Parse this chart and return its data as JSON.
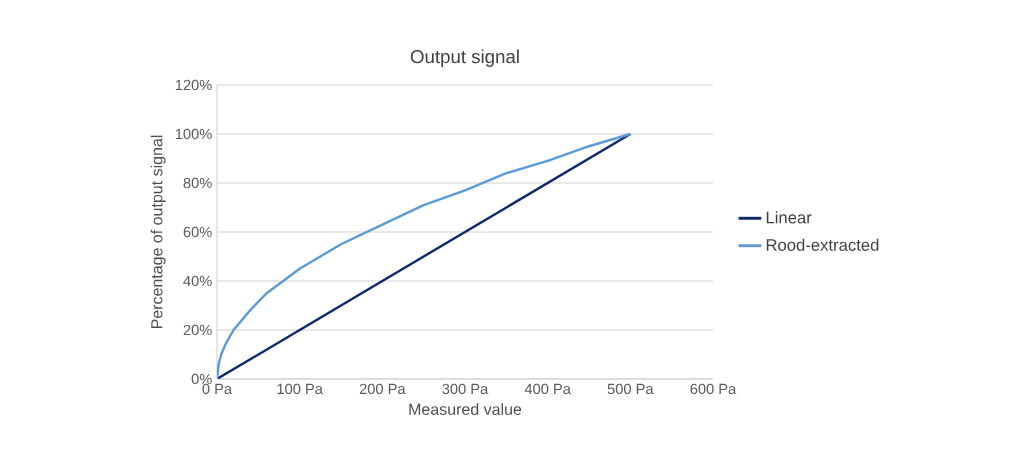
{
  "chart_data": {
    "type": "line",
    "title": "Output signal",
    "xlabel": "Measured value",
    "ylabel": "Percentage of output signal",
    "xlim": [
      0,
      600
    ],
    "ylim": [
      0,
      120
    ],
    "xticks": [
      {
        "value": 0,
        "label": "0 Pa"
      },
      {
        "value": 100,
        "label": "100 Pa"
      },
      {
        "value": 200,
        "label": "200 Pa"
      },
      {
        "value": 300,
        "label": "300 Pa"
      },
      {
        "value": 400,
        "label": "400 Pa"
      },
      {
        "value": 500,
        "label": "500 Pa"
      },
      {
        "value": 600,
        "label": "600 Pa"
      }
    ],
    "yticks": [
      {
        "value": 0,
        "label": "0%"
      },
      {
        "value": 20,
        "label": "20%"
      },
      {
        "value": 40,
        "label": "40%"
      },
      {
        "value": 60,
        "label": "60%"
      },
      {
        "value": 80,
        "label": "80%"
      },
      {
        "value": 100,
        "label": "100%"
      },
      {
        "value": 120,
        "label": "120%"
      }
    ],
    "grid": "y",
    "legend": "right",
    "series": [
      {
        "name": "Linear",
        "color": "#0d2a6b",
        "x": [
          0,
          500
        ],
        "values": [
          0,
          100
        ]
      },
      {
        "name": "Rood-extracted",
        "color": "#5b9bd5",
        "x": [
          0,
          2,
          5,
          10,
          20,
          40,
          60,
          80,
          100,
          150,
          200,
          250,
          300,
          350,
          400,
          450,
          500
        ],
        "values": [
          0,
          6,
          10,
          14,
          20,
          28,
          35,
          40,
          45,
          55,
          63,
          71,
          77,
          84,
          89,
          95,
          100
        ]
      }
    ]
  }
}
